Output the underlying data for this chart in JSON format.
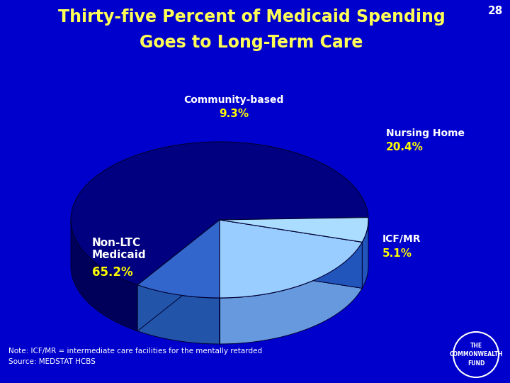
{
  "title_line1": "Thirty-five Percent of Medicaid Spending",
  "title_line2": "Goes to Long-Term Care",
  "title_color": "#FFFF55",
  "background_color": "#0000CC",
  "page_number": "28",
  "slices": [
    {
      "label": "Non-LTC\nMedicaid",
      "pct_label": "65.2%",
      "value": 65.2,
      "top_color": "#000080",
      "side_color": "#00005A",
      "zorder_base": 2
    },
    {
      "label": "Community-based",
      "pct_label": "9.3%",
      "value": 9.3,
      "top_color": "#3366CC",
      "side_color": "#2255AA",
      "zorder_base": 6
    },
    {
      "label": "Nursing Home",
      "pct_label": "20.4%",
      "value": 20.4,
      "top_color": "#99CCFF",
      "side_color": "#6699DD",
      "zorder_base": 7
    },
    {
      "label": "ICF/MR",
      "pct_label": "5.1%",
      "value": 5.1,
      "top_color": "#AADDFF",
      "side_color": "#2255BB",
      "zorder_base": 8
    }
  ],
  "note_line1": "Note: ICF/MR = intermediate care facilities for the mentally retarded",
  "note_line2": "Source: MEDSTAT HCBS",
  "note_color": "#FFFFFF",
  "label_color": "#FFFFFF",
  "pct_color": "#FFFF00",
  "commonwealth_text": "THE\nCOMMONWEALTH\nFUND"
}
